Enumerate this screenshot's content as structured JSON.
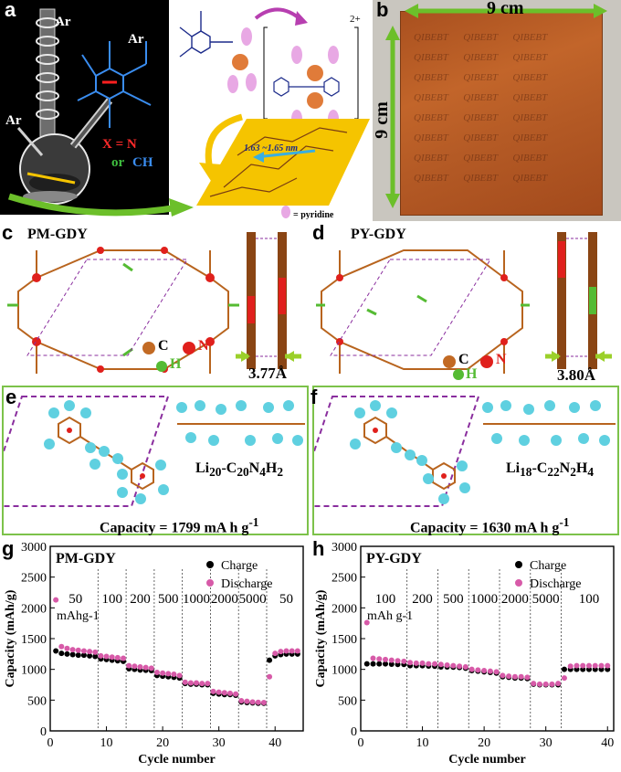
{
  "panels": {
    "a": {
      "label": "a",
      "ar1": "Ar",
      "ar2": "Ar",
      "ar3": "Ar",
      "x_eq": "X = N",
      "or": "or",
      "ch": "CH",
      "dist": "1.63 ~1.65 nm",
      "pyridine_legend": "= pyridine",
      "charge": "2+"
    },
    "b": {
      "label": "b",
      "width_label": "9 cm",
      "height_label": "9 cm",
      "watermark": "QIBEBT"
    },
    "c": {
      "label": "c",
      "title": "PM-GDY",
      "legend_c": "C",
      "legend_n": "N",
      "legend_h": "H",
      "spacing": "3.77Å"
    },
    "d": {
      "label": "d",
      "title": "PY-GDY",
      "legend_c": "C",
      "legend_n": "N",
      "legend_h": "H",
      "spacing": "3.80Å"
    },
    "e": {
      "label": "e",
      "formula": "Li20-C20N4H2",
      "capacity": "Capacity =  1799 mA h g-1"
    },
    "f": {
      "label": "f",
      "formula": "Li18-C22N2H4",
      "capacity": "Capacity =  1630 mA h g-1"
    }
  },
  "colors": {
    "charge": "#000000",
    "discharge": "#d75aa8",
    "yellow": "#f5c400",
    "green_arrow": "#6cbf2a",
    "lithium": "#5fd0e0",
    "carbon": "#b8641e",
    "nitrogen": "#e0201c",
    "hydrogen": "#55bb33",
    "bond_purple": "#8a2e9e"
  },
  "chart_data": [
    {
      "type": "scatter",
      "panel": "g",
      "title": "PM-GDY",
      "xlabel": "Cycle number",
      "ylabel": "Capacity (mAh/g)",
      "xlim": [
        0,
        45
      ],
      "ylim": [
        0,
        3000
      ],
      "xticks": [
        0,
        10,
        20,
        30,
        40
      ],
      "yticks": [
        0,
        500,
        1000,
        1500,
        2000,
        2500,
        3000
      ],
      "legend": [
        "Charge",
        "Discharge"
      ],
      "rate_labels": [
        "50",
        "100",
        "200",
        "500",
        "1000",
        "2000",
        "5000",
        "50"
      ],
      "unit_label": "mAhg-1",
      "segment_boundaries": [
        8,
        13,
        18,
        23,
        28,
        33,
        38
      ],
      "series": [
        {
          "name": "Charge",
          "x": [
            1,
            2,
            3,
            4,
            5,
            6,
            7,
            8,
            9,
            10,
            11,
            12,
            13,
            14,
            15,
            16,
            17,
            18,
            19,
            20,
            21,
            22,
            23,
            24,
            25,
            26,
            27,
            28,
            29,
            30,
            31,
            32,
            33,
            34,
            35,
            36,
            37,
            38,
            39,
            40,
            41,
            42,
            43,
            44
          ],
          "y": [
            1300,
            1260,
            1250,
            1240,
            1230,
            1230,
            1220,
            1210,
            1170,
            1160,
            1150,
            1140,
            1130,
            1010,
            1000,
            990,
            985,
            980,
            900,
            890,
            880,
            870,
            860,
            770,
            760,
            760,
            750,
            750,
            610,
            600,
            590,
            590,
            580,
            470,
            460,
            455,
            450,
            450,
            1150,
            1220,
            1240,
            1250,
            1250,
            1250
          ]
        },
        {
          "name": "Discharge",
          "x": [
            1,
            2,
            3,
            4,
            5,
            6,
            7,
            8,
            9,
            10,
            11,
            12,
            13,
            14,
            15,
            16,
            17,
            18,
            19,
            20,
            21,
            22,
            23,
            24,
            25,
            26,
            27,
            28,
            29,
            30,
            31,
            32,
            33,
            34,
            35,
            36,
            37,
            38,
            39,
            40,
            41,
            42,
            43,
            44
          ],
          "y": [
            2130,
            1370,
            1340,
            1320,
            1310,
            1300,
            1290,
            1280,
            1220,
            1210,
            1200,
            1190,
            1180,
            1060,
            1050,
            1040,
            1030,
            1020,
            950,
            940,
            930,
            920,
            900,
            790,
            780,
            780,
            770,
            770,
            640,
            630,
            620,
            610,
            600,
            490,
            480,
            470,
            465,
            460,
            880,
            1260,
            1290,
            1300,
            1300,
            1300
          ]
        }
      ]
    },
    {
      "type": "scatter",
      "panel": "h",
      "title": "PY-GDY",
      "xlabel": "Cycle number",
      "ylabel": "Capacity (mAh/g)",
      "xlim": [
        0,
        41
      ],
      "ylim": [
        0,
        3000
      ],
      "xticks": [
        0,
        10,
        20,
        30,
        40
      ],
      "yticks": [
        0,
        500,
        1000,
        1500,
        2000,
        2500,
        3000
      ],
      "legend": [
        "Charge",
        "Discharge"
      ],
      "rate_labels": [
        "100",
        "200",
        "500",
        "1000",
        "2000",
        "5000",
        "100"
      ],
      "unit_label": "mAh g-1",
      "segment_boundaries": [
        7,
        12,
        17,
        22,
        27,
        32
      ],
      "series": [
        {
          "name": "Charge",
          "x": [
            1,
            2,
            3,
            4,
            5,
            6,
            7,
            8,
            9,
            10,
            11,
            12,
            13,
            14,
            15,
            16,
            17,
            18,
            19,
            20,
            21,
            22,
            23,
            24,
            25,
            26,
            27,
            28,
            29,
            30,
            31,
            32,
            33,
            34,
            35,
            36,
            37,
            38,
            39,
            40
          ],
          "y": [
            1090,
            1090,
            1090,
            1090,
            1085,
            1080,
            1080,
            1060,
            1060,
            1060,
            1055,
            1050,
            1040,
            1040,
            1035,
            1030,
            1020,
            980,
            970,
            960,
            950,
            940,
            880,
            870,
            860,
            860,
            850,
            760,
            750,
            750,
            750,
            750,
            1000,
            1000,
            1000,
            1000,
            1000,
            1000,
            1000,
            1000
          ]
        },
        {
          "name": "Discharge",
          "x": [
            1,
            2,
            3,
            4,
            5,
            6,
            7,
            8,
            9,
            10,
            11,
            12,
            13,
            14,
            15,
            16,
            17,
            18,
            19,
            20,
            21,
            22,
            23,
            24,
            25,
            26,
            27,
            28,
            29,
            30,
            31,
            32,
            33,
            34,
            35,
            36,
            37,
            38,
            39,
            40
          ],
          "y": [
            1760,
            1180,
            1170,
            1160,
            1150,
            1140,
            1130,
            1110,
            1100,
            1100,
            1090,
            1090,
            1080,
            1070,
            1060,
            1050,
            1040,
            1000,
            990,
            980,
            970,
            960,
            900,
            890,
            880,
            880,
            870,
            770,
            760,
            760,
            760,
            770,
            860,
            1050,
            1060,
            1060,
            1060,
            1060,
            1060,
            1060
          ]
        }
      ]
    }
  ]
}
